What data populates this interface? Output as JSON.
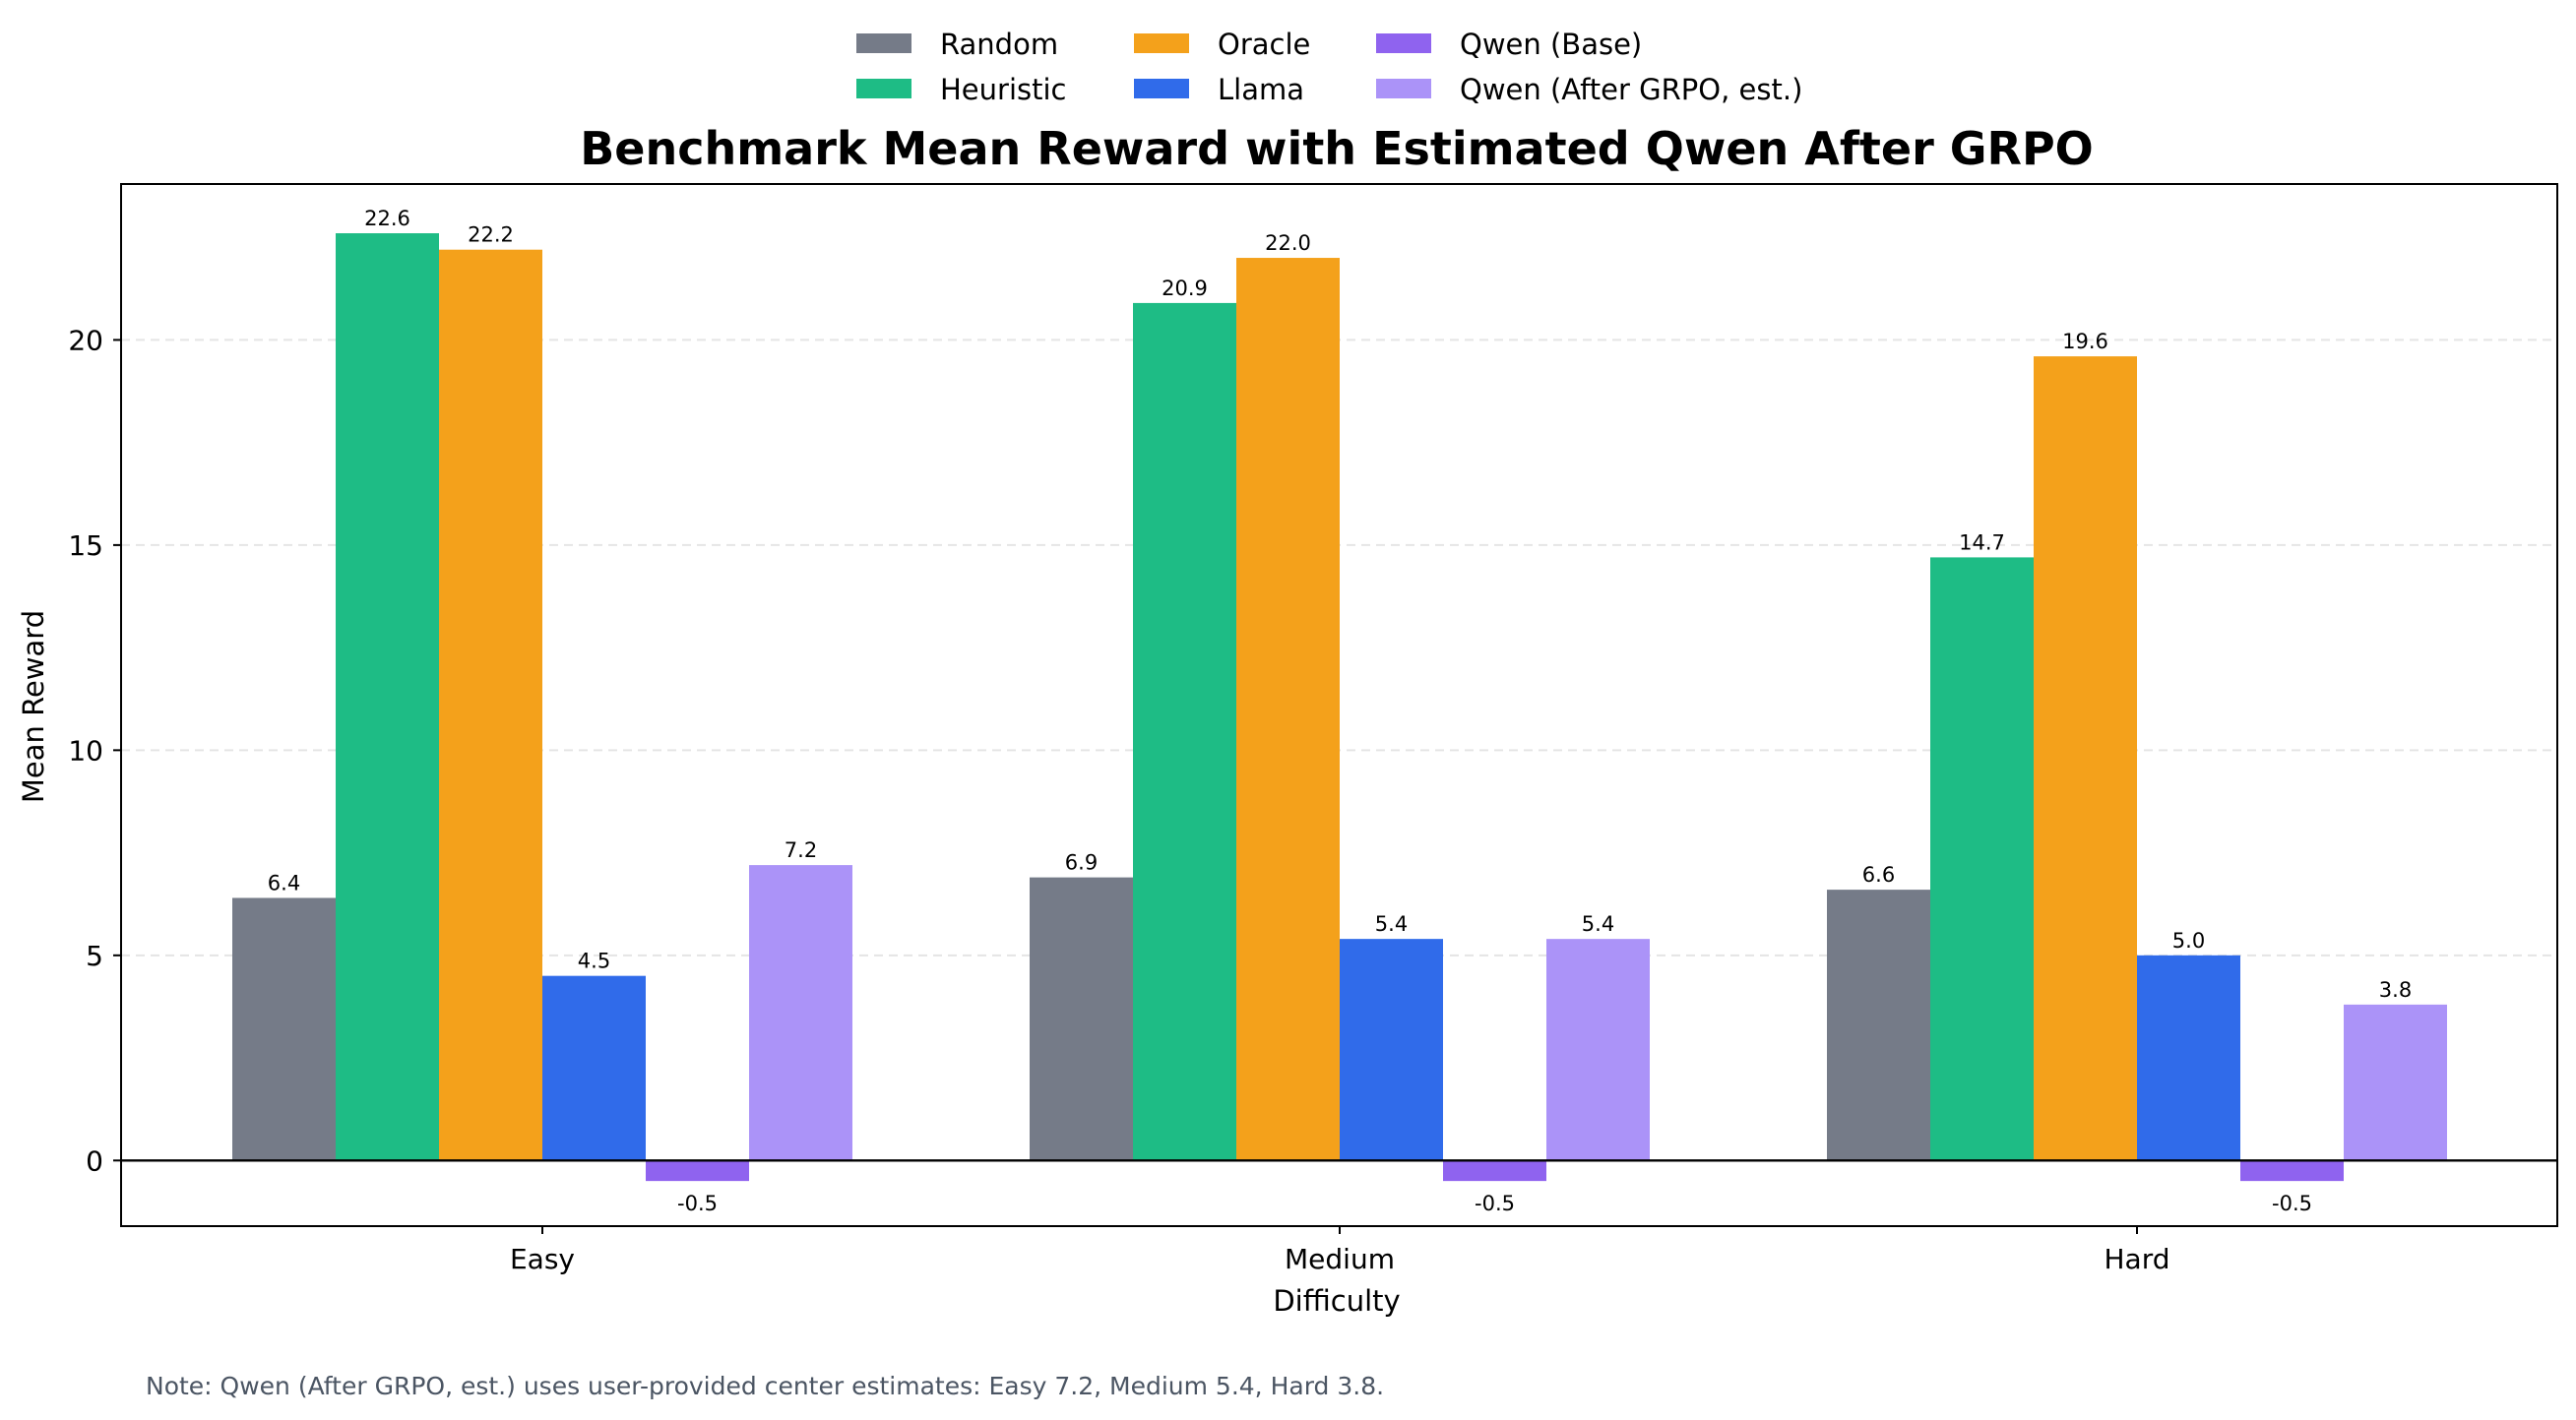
{
  "chart_data": {
    "type": "bar",
    "title": "Benchmark Mean Reward with Estimated Qwen After GRPO",
    "xlabel": "Difficulty",
    "ylabel": "Mean Reward",
    "categories": [
      "Easy",
      "Medium",
      "Hard"
    ],
    "ylim": [
      -1.6,
      23.8
    ],
    "yticks": [
      0,
      5,
      10,
      15,
      20
    ],
    "grid": "y-dashed",
    "legend_position": "top-center",
    "series": [
      {
        "name": "Random",
        "color": "#757b88",
        "values": [
          6.4,
          6.9,
          6.6
        ],
        "labels": [
          "6.4",
          "6.9",
          "6.6"
        ]
      },
      {
        "name": "Heuristic",
        "color": "#1ebc85",
        "values": [
          22.6,
          20.9,
          14.7
        ],
        "labels": [
          "22.6",
          "20.9",
          "14.7"
        ]
      },
      {
        "name": "Oracle",
        "color": "#f4a11b",
        "values": [
          22.2,
          22.0,
          19.6
        ],
        "labels": [
          "22.2",
          "22.0",
          "19.6"
        ]
      },
      {
        "name": "Llama",
        "color": "#306bea",
        "values": [
          4.5,
          5.4,
          5.0
        ],
        "labels": [
          "4.5",
          "5.4",
          "5.0"
        ]
      },
      {
        "name": "Qwen (Base)",
        "color": "#8f63ef",
        "values": [
          -0.5,
          -0.5,
          -0.5
        ],
        "labels": [
          "-0.5",
          "-0.5",
          "-0.5"
        ]
      },
      {
        "name": "Qwen (After GRPO, est.)",
        "color": "#ab93f8",
        "values": [
          7.2,
          5.4,
          3.8
        ],
        "labels": [
          "7.2",
          "5.4",
          "3.8"
        ]
      }
    ],
    "note": "Note: Qwen (After GRPO, est.) uses user-provided center estimates: Easy 7.2, Medium 5.4, Hard 3.8."
  }
}
